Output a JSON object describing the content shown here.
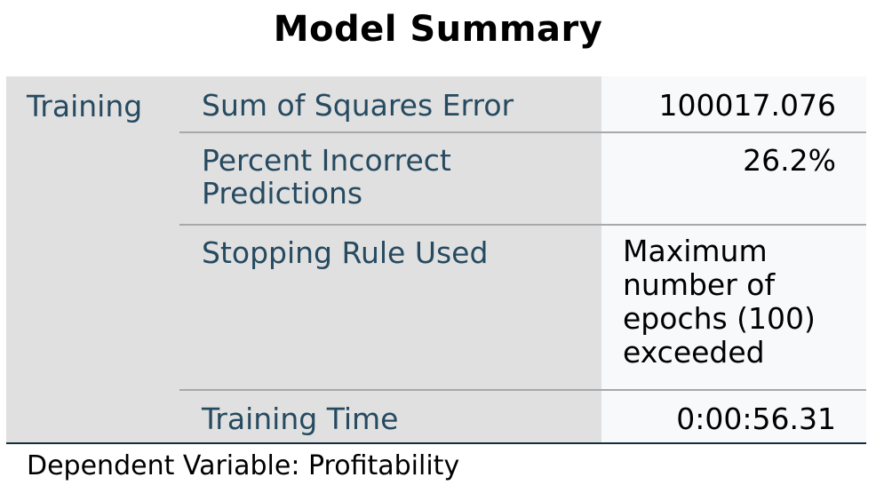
{
  "title": "Model Summary",
  "group": "Training",
  "rows": [
    {
      "label_lines": [
        "Sum of Squares Error"
      ],
      "value_lines": [
        "100017.076"
      ]
    },
    {
      "label_lines": [
        "Percent Incorrect",
        "Predictions"
      ],
      "value_lines": [
        "26.2%"
      ]
    },
    {
      "label_lines": [
        "Stopping Rule Used"
      ],
      "value_lines": [
        "Maximum",
        "number of",
        "epochs (100)",
        "exceeded"
      ]
    },
    {
      "label_lines": [
        "Training Time"
      ],
      "value_lines": [
        "0:00:56.31"
      ]
    }
  ],
  "footnote": "Dependent Variable: Profitability",
  "colors": {
    "label_text": "#264a60",
    "header_bg": "#e0e0e0",
    "value_bg": "#f8f9fa",
    "bottom_rule": "#152e3e"
  }
}
